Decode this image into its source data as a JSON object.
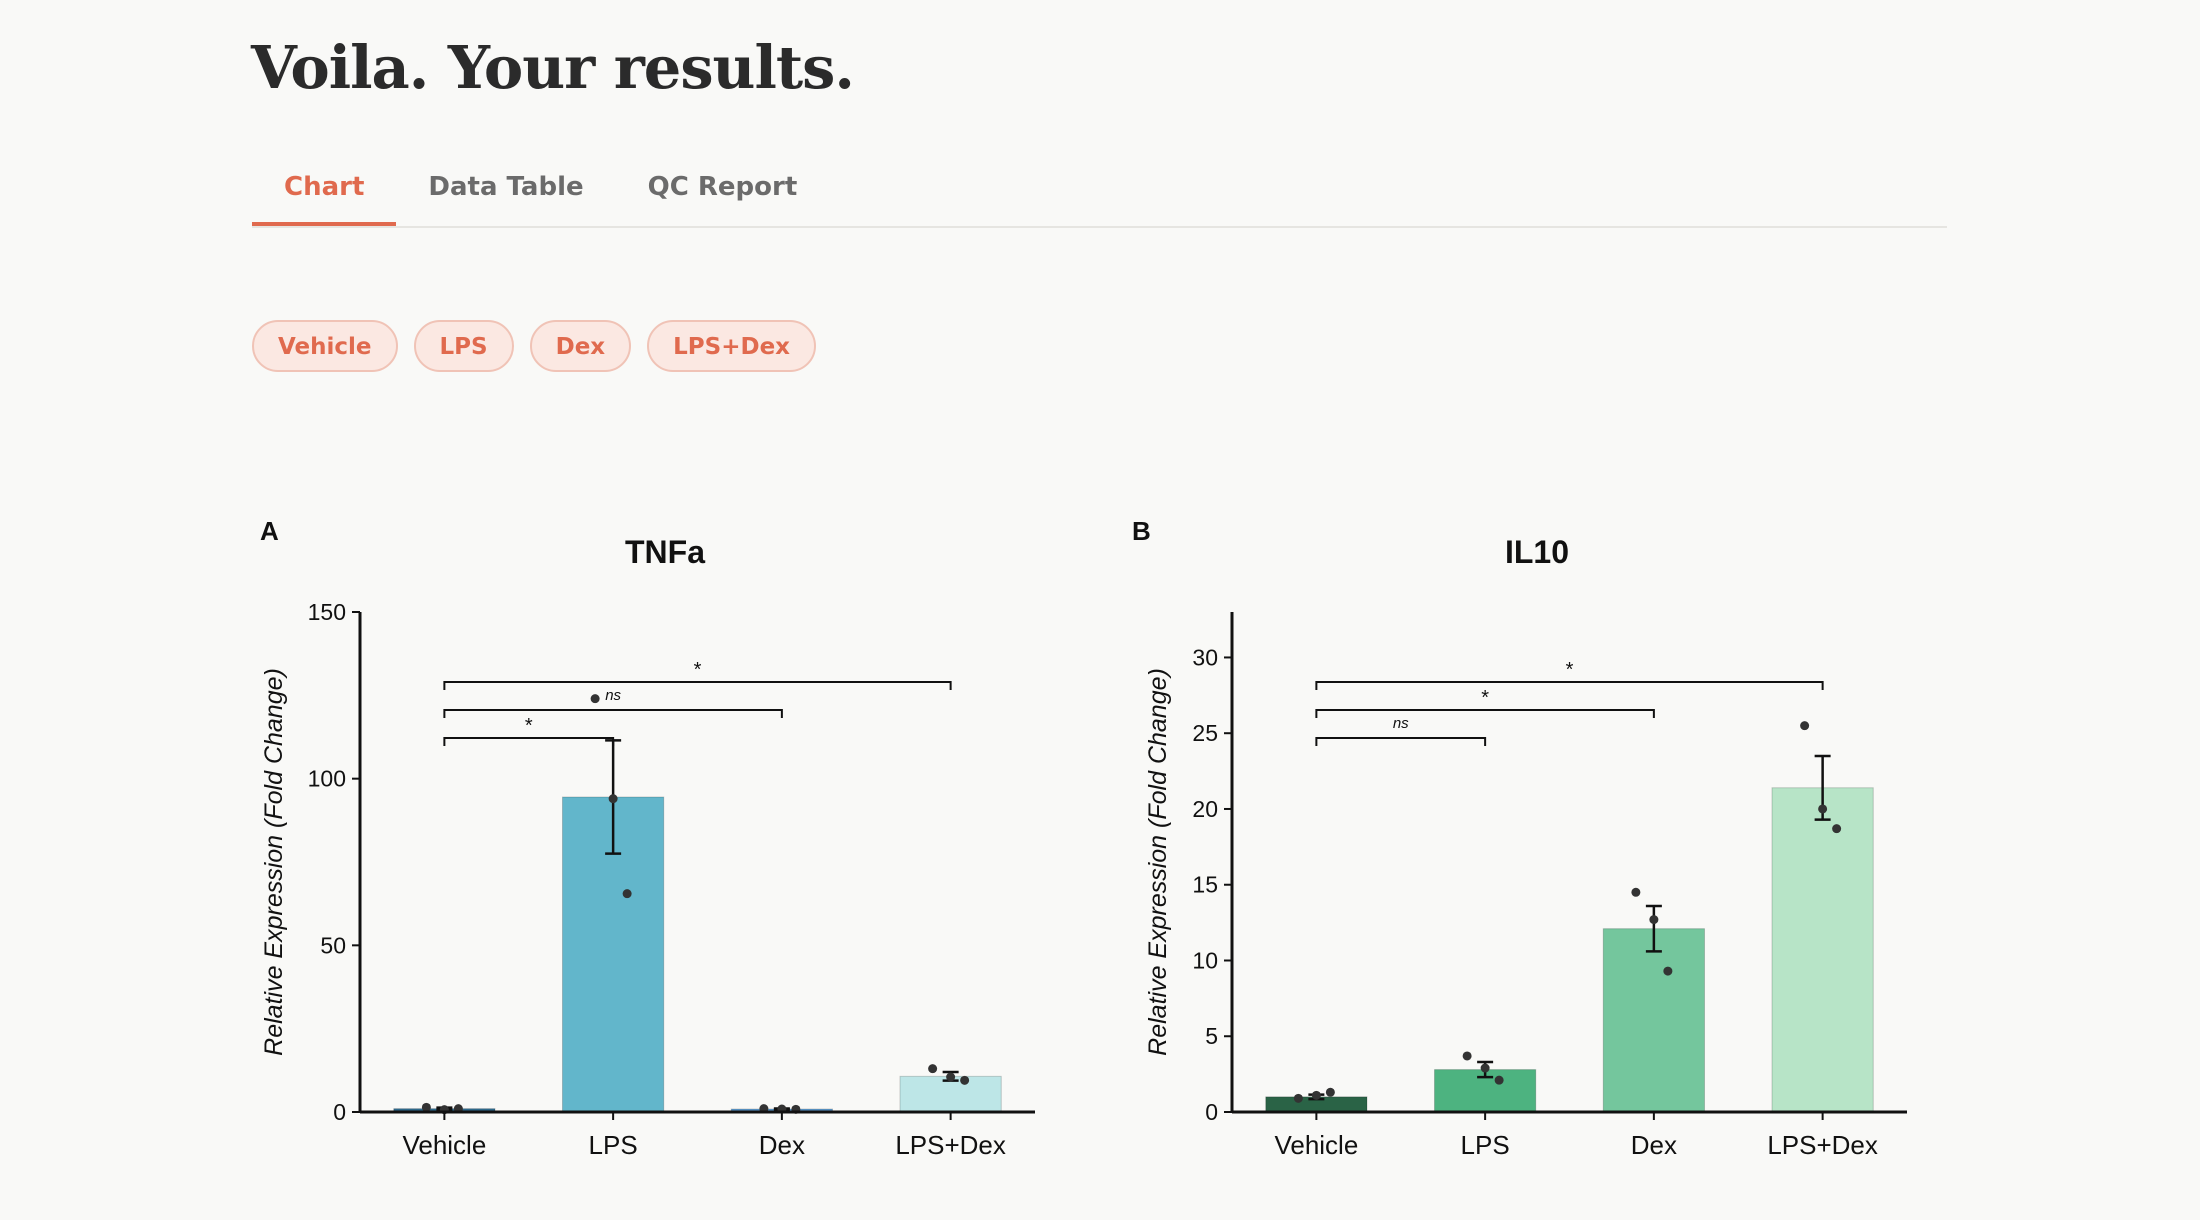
{
  "page": {
    "title": "Voila. Your results.",
    "tabs": [
      {
        "label": "Chart",
        "active": true
      },
      {
        "label": "Data Table",
        "active": false
      },
      {
        "label": "QC Report",
        "active": false
      }
    ],
    "filters": [
      "Vehicle",
      "LPS",
      "Dex",
      "LPS+Dex"
    ],
    "accent_color": "#e06a4e"
  },
  "chart_data": [
    {
      "panel": "A",
      "type": "bar",
      "title": "TNFa",
      "xlabel": "",
      "ylabel": "Relative Expression (Fold Change)",
      "categories": [
        "Vehicle",
        "LPS",
        "Dex",
        "LPS+Dex"
      ],
      "values": [
        1.0,
        94.5,
        0.9,
        10.7
      ],
      "errors": [
        0.3,
        17.0,
        0.15,
        1.3
      ],
      "points": [
        [
          1.4,
          0.7,
          1.0
        ],
        [
          124.0,
          94.0,
          65.5
        ],
        [
          1.0,
          0.9,
          0.8
        ],
        [
          13.0,
          10.5,
          9.5
        ]
      ],
      "colors": [
        "#2e6b8e",
        "#62b6cb",
        "#5d9cd1",
        "#bde6e7"
      ],
      "ylim": [
        0,
        150
      ],
      "yticks": [
        0,
        50,
        100,
        150
      ],
      "comparisons": [
        {
          "from": "Vehicle",
          "to": "LPS",
          "label": "*",
          "level": 1
        },
        {
          "from": "Vehicle",
          "to": "Dex",
          "label": "ns",
          "level": 2
        },
        {
          "from": "Vehicle",
          "to": "LPS+Dex",
          "label": "*",
          "level": 3
        }
      ]
    },
    {
      "panel": "B",
      "type": "bar",
      "title": "IL10",
      "xlabel": "",
      "ylabel": "Relative Expression (Fold Change)",
      "categories": [
        "Vehicle",
        "LPS",
        "Dex",
        "LPS+Dex"
      ],
      "values": [
        1.0,
        2.8,
        12.1,
        21.4
      ],
      "errors": [
        0.15,
        0.5,
        1.5,
        2.1
      ],
      "points": [
        [
          0.9,
          1.1,
          1.3
        ],
        [
          3.7,
          2.9,
          2.1
        ],
        [
          14.5,
          12.7,
          9.3
        ],
        [
          25.5,
          20.0,
          18.7
        ]
      ],
      "colors": [
        "#2a6346",
        "#4db380",
        "#74c69d",
        "#b7e4c7"
      ],
      "ylim": [
        0,
        33
      ],
      "yticks": [
        0,
        5,
        10,
        15,
        20,
        25,
        30
      ],
      "comparisons": [
        {
          "from": "Vehicle",
          "to": "LPS",
          "label": "ns",
          "level": 1
        },
        {
          "from": "Vehicle",
          "to": "Dex",
          "label": "*",
          "level": 2
        },
        {
          "from": "Vehicle",
          "to": "LPS+Dex",
          "label": "*",
          "level": 3
        }
      ]
    }
  ]
}
